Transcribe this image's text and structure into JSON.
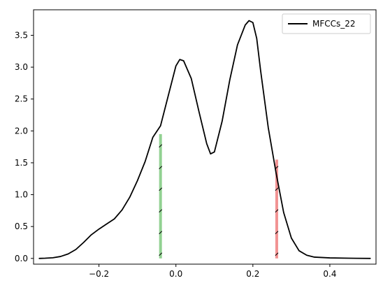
{
  "chart_data": {
    "type": "line",
    "title": "",
    "xlabel": "",
    "ylabel": "",
    "xlim": [
      -0.37,
      0.52
    ],
    "ylim": [
      -0.09,
      3.9
    ],
    "x_ticks": [
      -0.2,
      0.0,
      0.2,
      0.4
    ],
    "x_tick_labels": [
      "−0.2",
      "0.0",
      "0.2",
      "0.4"
    ],
    "y_ticks": [
      0.0,
      0.5,
      1.0,
      1.5,
      2.0,
      2.5,
      3.0,
      3.5
    ],
    "y_tick_labels": [
      "0.0",
      "0.5",
      "1.0",
      "1.5",
      "2.0",
      "2.5",
      "3.0",
      "3.5"
    ],
    "grid": false,
    "legend": {
      "placement": "top-right",
      "entries": [
        "MFCCs_22"
      ]
    },
    "series": [
      {
        "name": "MFCCs_22",
        "color": "#000000",
        "x": [
          -0.355,
          -0.34,
          -0.32,
          -0.3,
          -0.28,
          -0.26,
          -0.24,
          -0.22,
          -0.2,
          -0.18,
          -0.16,
          -0.14,
          -0.12,
          -0.1,
          -0.08,
          -0.06,
          -0.04,
          -0.02,
          0.0,
          0.01,
          0.02,
          0.04,
          0.06,
          0.08,
          0.09,
          0.1,
          0.12,
          0.14,
          0.16,
          0.18,
          0.19,
          0.2,
          0.21,
          0.22,
          0.24,
          0.26,
          0.28,
          0.3,
          0.32,
          0.34,
          0.36,
          0.4,
          0.45,
          0.505
        ],
        "values": [
          0.0,
          0.003,
          0.01,
          0.03,
          0.07,
          0.14,
          0.25,
          0.37,
          0.46,
          0.54,
          0.62,
          0.76,
          0.96,
          1.22,
          1.52,
          1.9,
          2.08,
          2.55,
          3.02,
          3.12,
          3.1,
          2.82,
          2.3,
          1.8,
          1.64,
          1.67,
          2.15,
          2.8,
          3.35,
          3.66,
          3.73,
          3.7,
          3.45,
          2.95,
          2.05,
          1.35,
          0.72,
          0.32,
          0.12,
          0.05,
          0.02,
          0.008,
          0.003,
          0.0
        ]
      }
    ],
    "shaded_regions": [
      {
        "x": -0.04,
        "y_top": 1.95,
        "color": "#7fc97f",
        "hatch": "/"
      },
      {
        "x": 0.262,
        "y_top": 1.55,
        "color": "#f08080",
        "hatch": "/"
      }
    ]
  }
}
